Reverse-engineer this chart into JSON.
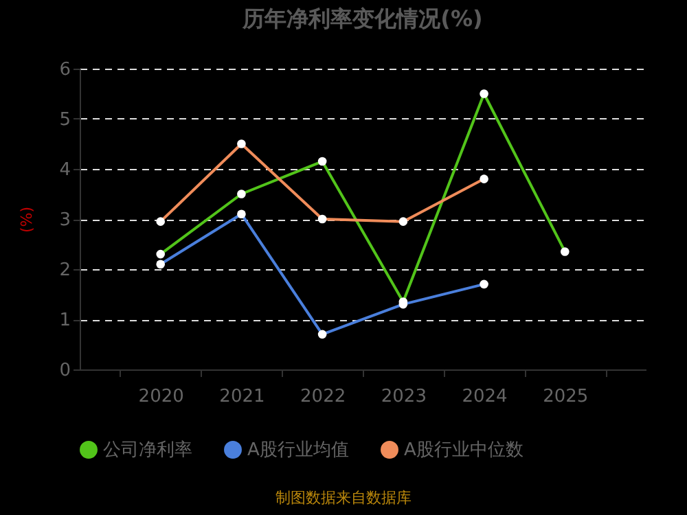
{
  "chart_data": {
    "type": "line",
    "title": "历年净利率变化情况(%)",
    "ylabel": "(%)",
    "categories": [
      "2020",
      "2021",
      "2022",
      "2023",
      "2024",
      "2025"
    ],
    "series": [
      {
        "name": "公司净利率",
        "color": "#52c41a",
        "values": [
          2.3,
          3.5,
          4.15,
          1.35,
          5.5,
          2.35
        ]
      },
      {
        "name": "A股行业均值",
        "color": "#4a7fdc",
        "values": [
          2.1,
          3.1,
          0.7,
          1.3,
          1.7,
          null
        ]
      },
      {
        "name": "A股行业中位数",
        "color": "#f08c5a",
        "values": [
          2.95,
          4.5,
          3.0,
          2.95,
          3.8,
          null
        ]
      }
    ],
    "ylim": [
      0,
      6
    ],
    "yticks": [
      0,
      1,
      2,
      3,
      4,
      5,
      6
    ],
    "grid": "y",
    "legend": "bottom",
    "marker": "circle",
    "line_style": "solid",
    "annotations": [
      "制图数据来自数据库"
    ]
  }
}
